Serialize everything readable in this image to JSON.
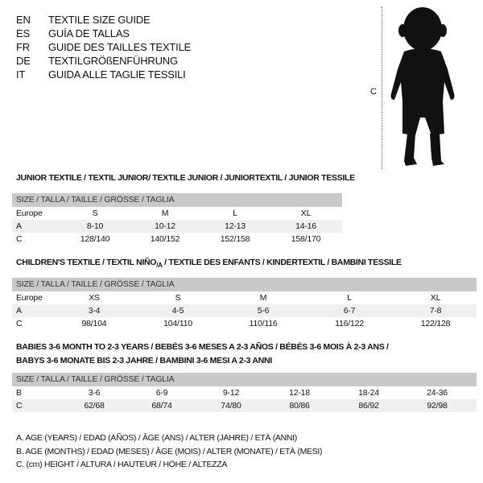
{
  "languages": [
    {
      "code": "EN",
      "text": "TEXTILE SIZE GUIDE"
    },
    {
      "code": "ES",
      "text": "GUÍA DE TALLAS"
    },
    {
      "code": "FR",
      "text": "GUIDE DES TAILLES TEXTILE"
    },
    {
      "code": "DE",
      "text": "TEXTILGRÖßENFÜHRUNG"
    },
    {
      "code": "IT",
      "text": "GUIDA ALLE TAGLIE TESSILI"
    }
  ],
  "figure": {
    "measure_label": "C"
  },
  "junior": {
    "title": "JUNIOR TEXTILE / TEXTIL JUNIOR/ TEXTILE JUNIOR / JUNIORTEXTIL / JUNIOR TESSILE",
    "header": "SIZE / TALLA / TAILLE / GRÖSSE / TAGLIA",
    "rows": [
      {
        "label": "Europe",
        "cells": [
          "S",
          "M",
          "L",
          "XL"
        ]
      },
      {
        "label": "A",
        "cells": [
          "8-10",
          "10-12",
          "12-13",
          "14-16"
        ]
      },
      {
        "label": "C",
        "cells": [
          "128/140",
          "140/152",
          "152/158",
          "158/170"
        ]
      }
    ]
  },
  "children": {
    "title": "CHILDREN'S TEXTILE / TEXTIL NIÑO",
    "title_sub": "/A",
    "title_rest": " / TEXTILE DES ENFANTS / KINDERTEXTIL / BAMBINI TESSILE",
    "header": "SIZE / TALLA / TAILLE / GRÖSSE / TAGLIA",
    "rows": [
      {
        "label": "Europe",
        "cells": [
          "XS",
          "S",
          "M",
          "L",
          "XL"
        ]
      },
      {
        "label": "A",
        "cells": [
          "3-4",
          "4-5",
          "5-6",
          "6-7",
          "7-8"
        ]
      },
      {
        "label": "C",
        "cells": [
          "98/104",
          "104/110",
          "110/116",
          "116/122",
          "122/128"
        ]
      }
    ]
  },
  "babies": {
    "title_line1": "BABIES 3-6 MONTH TO 2-3 YEARS / BEBÉS 3-6 MESES A 2-3 AÑOS / BÉBÉS 3-6 MOIS À 2-3 ANS /",
    "title_line2": "BABYS 3-6 MONATE BIS 2-3 JAHRE / BAMBINI 3-6 MESI A 2-3 ANNI",
    "header": "SIZE / TALLA / TAILLE / GRÖSSE / TAGLIA",
    "rows": [
      {
        "label": "B",
        "cells": [
          "3-6",
          "6-9",
          "9-12",
          "12-18",
          "18-24",
          "24-36"
        ]
      },
      {
        "label": "C",
        "cells": [
          "62/68",
          "68/74",
          "74/80",
          "80/86",
          "86/92",
          "92/98"
        ]
      }
    ]
  },
  "legend": [
    "A. AGE (YEARS) / EDAD (AÑOS) / ÂGE (ANS) / ALTER (JAHRE) / ETÀ (ANNI)",
    "B. AGE (MONTHS) / EDAD (MESES) / ÂGE (MOIS) / ALTER (MONATE) / ETÀ (MESI)",
    "C. (cm) HEIGHT / ALTURA / HAUTEUR / HÖHE / ALTEZZA"
  ]
}
